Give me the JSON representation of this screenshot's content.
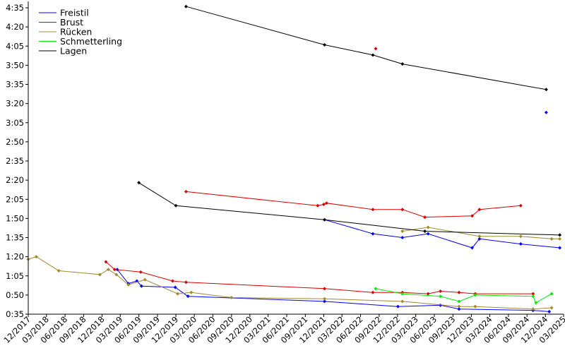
{
  "chart_data": {
    "type": "line",
    "title": "",
    "xlabel": "",
    "ylabel": "",
    "xlim": [
      "2017-12-01",
      "2025-03-01"
    ],
    "ylim": [
      "0:35",
      "4:40"
    ],
    "grid": false,
    "legend_position": "top-left",
    "y_ticks": [
      "0:35",
      "0:50",
      "1:05",
      "1:20",
      "1:35",
      "1:50",
      "2:05",
      "2:20",
      "2:35",
      "2:50",
      "3:05",
      "3:20",
      "3:35",
      "3:50",
      "4:05",
      "4:20",
      "4:35"
    ],
    "x_ticks": [
      "12/2017",
      "03/2018",
      "06/2018",
      "09/2018",
      "12/2018",
      "03/2019",
      "06/2019",
      "09/2019",
      "12/2019",
      "03/2020",
      "06/2020",
      "09/2020",
      "12/2020",
      "03/2021",
      "06/2021",
      "09/2021",
      "12/2021",
      "03/2022",
      "06/2022",
      "09/2022",
      "12/2022",
      "03/2023",
      "06/2023",
      "09/2023",
      "12/2023",
      "03/2024",
      "06/2024",
      "09/2024",
      "12/2024",
      "03/2025"
    ],
    "series": [
      {
        "name": "Freistil",
        "color": "#0000ff",
        "groups": [
          [
            [
              "2019-02-14",
              "1:10"
            ],
            [
              "2019-04-10",
              "0:59"
            ],
            [
              "2019-05-22",
              "1:01"
            ],
            [
              "2019-06-14",
              "0:57"
            ],
            [
              "2019-11-28",
              "0:56"
            ],
            [
              "2020-01-30",
              "0:49"
            ],
            [
              "2021-12-05",
              "0:45"
            ],
            [
              "2022-12-03",
              "0:41"
            ],
            [
              "2023-07-01",
              "0:42"
            ],
            [
              "2023-10-01",
              "0:39"
            ],
            [
              "2024-10-01",
              "0:38"
            ],
            [
              "2024-12-20",
              "0:37"
            ]
          ],
          [
            [
              "2021-12-05",
              "1:49"
            ],
            [
              "2022-08-01",
              "1:38"
            ],
            [
              "2022-12-25",
              "1:35"
            ],
            [
              "2023-05-01",
              "1:38"
            ],
            [
              "2023-12-05",
              "1:27"
            ],
            [
              "2024-01-10",
              "1:34"
            ],
            [
              "2024-08-01",
              "1:30"
            ],
            [
              "2025-02-10",
              "1:27"
            ]
          ],
          [
            [
              "2024-12-05",
              "3:13"
            ]
          ]
        ]
      },
      {
        "name": "Brust",
        "color": "#dd0000",
        "groups": [
          [
            [
              "2018-12-20",
              "1:16"
            ],
            [
              "2019-02-01",
              "1:10"
            ],
            [
              "2019-06-10",
              "1:08"
            ],
            [
              "2019-11-15",
              "1:01"
            ],
            [
              "2020-01-20",
              "1:00"
            ],
            [
              "2021-12-05",
              "0:55"
            ],
            [
              "2022-08-01",
              "0:52"
            ],
            [
              "2022-12-25",
              "0:52"
            ],
            [
              "2023-05-01",
              "0:51"
            ],
            [
              "2023-07-01",
              "0:53"
            ],
            [
              "2023-10-01",
              "0:52"
            ],
            [
              "2023-12-20",
              "0:51"
            ],
            [
              "2024-10-01",
              "0:51"
            ]
          ],
          [
            [
              "2020-01-20",
              "2:11"
            ],
            [
              "2021-11-01",
              "2:00"
            ],
            [
              "2021-12-01",
              "2:01"
            ],
            [
              "2021-12-15",
              "2:02"
            ],
            [
              "2022-08-01",
              "1:57"
            ],
            [
              "2022-12-25",
              "1:57"
            ],
            [
              "2023-04-15",
              "1:51"
            ],
            [
              "2023-12-05",
              "1:52"
            ],
            [
              "2024-01-10",
              "1:57"
            ],
            [
              "2024-08-01",
              "2:00"
            ]
          ],
          [
            [
              "2022-08-15",
              "4:03"
            ]
          ]
        ]
      },
      {
        "name": "Rücken",
        "color": "#a08a30",
        "groups": [
          [
            [
              "2017-12-01",
              "1:18"
            ],
            [
              "2018-01-10",
              "1:20"
            ],
            [
              "2018-05-01",
              "1:09"
            ],
            [
              "2018-11-20",
              "1:06"
            ],
            [
              "2019-01-01",
              "1:10"
            ],
            [
              "2019-02-10",
              "1:06"
            ],
            [
              "2019-04-10",
              "0:58"
            ],
            [
              "2019-07-01",
              "1:02"
            ],
            [
              "2019-12-10",
              "0:51"
            ],
            [
              "2020-02-15",
              "0:52"
            ],
            [
              "2020-09-01",
              "0:48"
            ],
            [
              "2021-12-05",
              "0:47"
            ],
            [
              "2022-12-25",
              "0:45"
            ],
            [
              "2023-10-01",
              "0:41"
            ],
            [
              "2023-12-20",
              "0:41"
            ],
            [
              "2024-10-01",
              "0:39"
            ],
            [
              "2025-01-01",
              "0:40"
            ]
          ],
          [
            [
              "2022-12-25",
              "1:40"
            ],
            [
              "2023-05-01",
              "1:43"
            ],
            [
              "2024-01-10",
              "1:36"
            ],
            [
              "2024-08-01",
              "1:36"
            ],
            [
              "2025-01-01",
              "1:34"
            ],
            [
              "2025-02-10",
              "1:34"
            ]
          ]
        ]
      },
      {
        "name": "Schmetterling",
        "color": "#00ee00",
        "groups": [
          [
            [
              "2022-08-15",
              "0:55"
            ],
            [
              "2022-12-25",
              "0:51"
            ],
            [
              "2023-07-01",
              "0:49"
            ],
            [
              "2023-10-01",
              "0:45"
            ],
            [
              "2023-12-20",
              "0:50"
            ],
            [
              "2024-10-01",
              "0:49"
            ],
            [
              "2024-10-15",
              "0:44"
            ],
            [
              "2025-01-01",
              "0:51"
            ]
          ]
        ]
      },
      {
        "name": "Lagen",
        "color": "#000000",
        "groups": [
          [
            [
              "2019-06-01",
              "2:18"
            ],
            [
              "2019-12-01",
              "2:00"
            ],
            [
              "2021-12-05",
              "1:49"
            ],
            [
              "2023-04-15",
              "1:40"
            ],
            [
              "2025-02-10",
              "1:37"
            ]
          ],
          [
            [
              "2020-01-20",
              "4:36"
            ],
            [
              "2021-12-05",
              "4:06"
            ],
            [
              "2022-08-01",
              "3:58"
            ],
            [
              "2022-12-25",
              "3:51"
            ],
            [
              "2024-12-05",
              "3:31"
            ]
          ]
        ]
      }
    ]
  }
}
